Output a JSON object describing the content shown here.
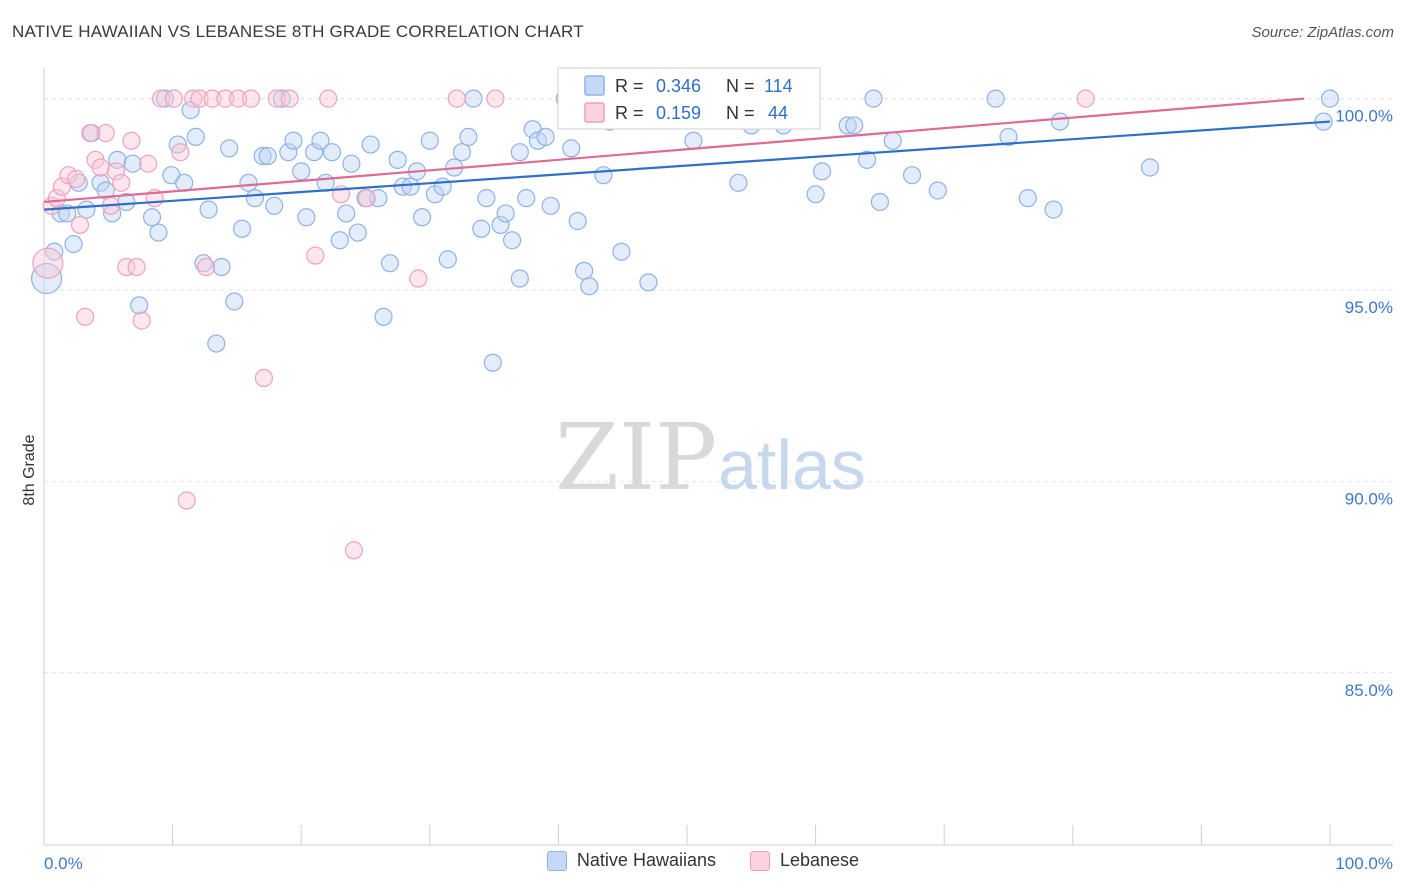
{
  "header": {
    "title": "NATIVE HAWAIIAN VS LEBANESE 8TH GRADE CORRELATION CHART",
    "source": "Source: ZipAtlas.com"
  },
  "watermark": {
    "zip": "ZIP",
    "atlas": "atlas"
  },
  "stats": [
    {
      "r_label": "R =",
      "r_value": "0.346",
      "n_label": "N =",
      "n_value": "114"
    },
    {
      "r_label": "R =",
      "r_value": "0.159",
      "n_label": "N =",
      "n_value": "44"
    }
  ],
  "legend": {
    "items": [
      "Native Hawaiians",
      "Lebanese"
    ]
  },
  "chart_data": {
    "type": "scatter",
    "title": "NATIVE HAWAIIAN VS LEBANESE 8TH GRADE CORRELATION CHART",
    "xlabel": "",
    "ylabel": "8th Grade",
    "xlim": [
      0,
      100
    ],
    "ylim": [
      80.5,
      100.8
    ],
    "x_tick_labels": [
      "0.0%",
      "100.0%"
    ],
    "y_ticks": [
      85,
      90,
      95,
      100
    ],
    "y_tick_labels": [
      "85.0%",
      "90.0%",
      "95.0%",
      "100.0%"
    ],
    "grid": true,
    "legend_position": "bottom-center",
    "colors": {
      "blue": "#5b8fd9",
      "pink": "#e87ea1",
      "blue_line": "#2e6fc9",
      "pink_line": "#e06a93"
    },
    "series": [
      {
        "name": "Native Hawaiians",
        "color": "#5b8fd9",
        "trend": {
          "x": [
            0,
            100
          ],
          "y": [
            97.1,
            99.4
          ]
        },
        "points": [
          [
            0.2,
            95.3
          ],
          [
            0.8,
            96.0
          ],
          [
            1.3,
            97.0
          ],
          [
            1.8,
            97.0
          ],
          [
            2.3,
            96.2
          ],
          [
            2.7,
            97.8
          ],
          [
            3.3,
            97.1
          ],
          [
            3.7,
            99.1
          ],
          [
            4.4,
            97.8
          ],
          [
            4.8,
            97.6
          ],
          [
            5.3,
            97.0
          ],
          [
            5.7,
            98.4
          ],
          [
            6.4,
            97.3
          ],
          [
            6.9,
            98.3
          ],
          [
            7.4,
            94.6
          ],
          [
            8.4,
            96.9
          ],
          [
            8.9,
            96.5
          ],
          [
            9.4,
            100.0
          ],
          [
            9.9,
            98.0
          ],
          [
            10.4,
            98.8
          ],
          [
            10.9,
            97.8
          ],
          [
            11.4,
            99.7
          ],
          [
            11.8,
            99.0
          ],
          [
            12.4,
            95.7
          ],
          [
            12.8,
            97.1
          ],
          [
            13.4,
            93.6
          ],
          [
            13.8,
            95.6
          ],
          [
            14.4,
            98.7
          ],
          [
            14.8,
            94.7
          ],
          [
            15.4,
            96.6
          ],
          [
            15.9,
            97.8
          ],
          [
            16.4,
            97.4
          ],
          [
            17.0,
            98.5
          ],
          [
            17.4,
            98.5
          ],
          [
            17.9,
            97.2
          ],
          [
            18.5,
            100.0
          ],
          [
            19.0,
            98.6
          ],
          [
            19.4,
            98.9
          ],
          [
            20.0,
            98.1
          ],
          [
            20.4,
            96.9
          ],
          [
            21.0,
            98.6
          ],
          [
            21.5,
            98.9
          ],
          [
            21.9,
            97.8
          ],
          [
            22.4,
            98.6
          ],
          [
            23.0,
            96.3
          ],
          [
            23.5,
            97.0
          ],
          [
            23.9,
            98.3
          ],
          [
            24.4,
            96.5
          ],
          [
            25.0,
            97.4
          ],
          [
            25.4,
            98.8
          ],
          [
            26.0,
            97.4
          ],
          [
            26.4,
            94.3
          ],
          [
            26.9,
            95.7
          ],
          [
            27.5,
            98.4
          ],
          [
            27.9,
            97.7
          ],
          [
            28.5,
            97.7
          ],
          [
            29.0,
            98.1
          ],
          [
            29.4,
            96.9
          ],
          [
            30.0,
            98.9
          ],
          [
            30.4,
            97.5
          ],
          [
            31.0,
            97.7
          ],
          [
            31.4,
            95.8
          ],
          [
            31.9,
            98.2
          ],
          [
            32.5,
            98.6
          ],
          [
            33.0,
            99.0
          ],
          [
            33.4,
            100.0
          ],
          [
            34.0,
            96.6
          ],
          [
            34.4,
            97.4
          ],
          [
            34.9,
            93.1
          ],
          [
            35.5,
            96.7
          ],
          [
            35.9,
            97.0
          ],
          [
            36.4,
            96.3
          ],
          [
            37.0,
            95.3
          ],
          [
            37.5,
            97.4
          ],
          [
            38.0,
            99.2
          ],
          [
            38.4,
            98.9
          ],
          [
            39.0,
            99.0
          ],
          [
            39.4,
            97.2
          ],
          [
            40.5,
            100.0
          ],
          [
            41.0,
            98.7
          ],
          [
            41.5,
            96.8
          ],
          [
            42.0,
            95.5
          ],
          [
            42.4,
            95.1
          ],
          [
            43.5,
            98.0
          ],
          [
            44.0,
            99.4
          ],
          [
            44.9,
            96.0
          ],
          [
            45.4,
            100.0
          ],
          [
            47.0,
            95.2
          ],
          [
            48.5,
            100.0
          ],
          [
            50.5,
            98.9
          ],
          [
            52.0,
            99.5
          ],
          [
            54.0,
            97.8
          ],
          [
            55.0,
            99.3
          ],
          [
            59.5,
            100.0
          ],
          [
            60.0,
            97.5
          ],
          [
            60.5,
            98.1
          ],
          [
            62.5,
            99.3
          ],
          [
            63.0,
            99.3
          ],
          [
            64.0,
            98.4
          ],
          [
            64.5,
            100.0
          ],
          [
            65.0,
            97.3
          ],
          [
            66.0,
            98.9
          ],
          [
            67.5,
            98.0
          ],
          [
            69.5,
            97.6
          ],
          [
            74.0,
            100.0
          ],
          [
            75.0,
            99.0
          ],
          [
            76.5,
            97.4
          ],
          [
            78.5,
            97.1
          ],
          [
            79.0,
            99.4
          ],
          [
            86.0,
            98.2
          ],
          [
            100.0,
            100.0
          ],
          [
            99.5,
            99.4
          ],
          [
            57.5,
            99.3
          ],
          [
            37.0,
            98.6
          ]
        ]
      },
      {
        "name": "Lebanese",
        "color": "#e87ea1",
        "trend": {
          "x": [
            0,
            98
          ],
          "y": [
            97.3,
            100.0
          ]
        },
        "points": [
          [
            0.3,
            95.7
          ],
          [
            0.6,
            97.2
          ],
          [
            1.0,
            97.4
          ],
          [
            1.4,
            97.7
          ],
          [
            1.9,
            98.0
          ],
          [
            2.5,
            97.9
          ],
          [
            2.8,
            96.7
          ],
          [
            3.2,
            94.3
          ],
          [
            3.6,
            99.1
          ],
          [
            4.0,
            98.4
          ],
          [
            4.4,
            98.2
          ],
          [
            4.8,
            99.1
          ],
          [
            5.2,
            97.2
          ],
          [
            5.6,
            98.1
          ],
          [
            6.0,
            97.8
          ],
          [
            6.4,
            95.6
          ],
          [
            6.8,
            98.9
          ],
          [
            7.2,
            95.6
          ],
          [
            7.6,
            94.2
          ],
          [
            8.1,
            98.3
          ],
          [
            8.6,
            97.4
          ],
          [
            9.1,
            100.0
          ],
          [
            10.1,
            100.0
          ],
          [
            10.6,
            98.6
          ],
          [
            11.1,
            89.5
          ],
          [
            11.6,
            100.0
          ],
          [
            12.1,
            100.0
          ],
          [
            12.6,
            95.6
          ],
          [
            13.1,
            100.0
          ],
          [
            14.1,
            100.0
          ],
          [
            15.1,
            100.0
          ],
          [
            16.1,
            100.0
          ],
          [
            17.1,
            92.7
          ],
          [
            18.1,
            100.0
          ],
          [
            19.1,
            100.0
          ],
          [
            21.1,
            95.9
          ],
          [
            22.1,
            100.0
          ],
          [
            23.1,
            97.5
          ],
          [
            24.1,
            88.2
          ],
          [
            25.1,
            97.4
          ],
          [
            29.1,
            95.3
          ],
          [
            32.1,
            100.0
          ],
          [
            35.1,
            100.0
          ],
          [
            81.0,
            100.0
          ]
        ]
      }
    ]
  }
}
